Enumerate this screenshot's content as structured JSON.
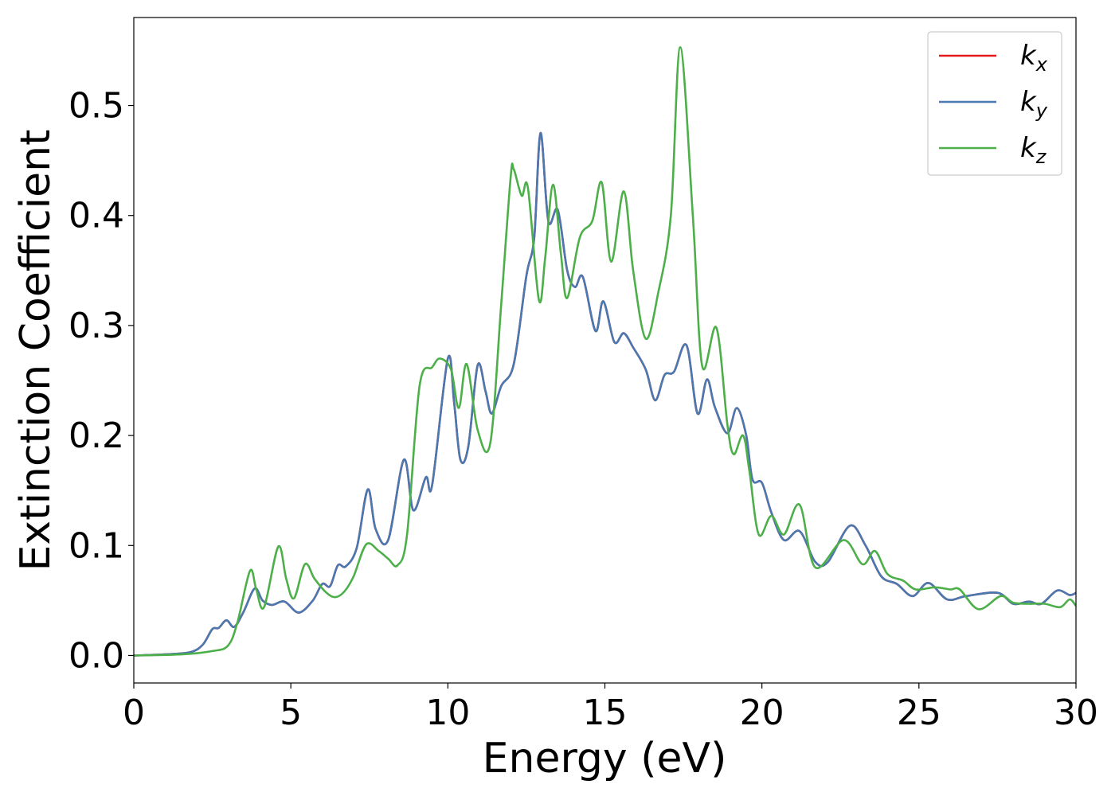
{
  "chart_data": {
    "type": "line",
    "title": "",
    "xlabel": "Energy (eV)",
    "ylabel": "Extinction Coefficient",
    "xlim": [
      0,
      30
    ],
    "ylim": [
      -0.025,
      0.58
    ],
    "xticks": [
      0,
      5,
      10,
      15,
      20,
      25,
      30
    ],
    "xtick_labels": [
      "0",
      "5",
      "10",
      "15",
      "20",
      "25",
      "30"
    ],
    "yticks": [
      0.0,
      0.1,
      0.2,
      0.3,
      0.4,
      0.5
    ],
    "ytick_labels": [
      "0.0",
      "0.1",
      "0.2",
      "0.3",
      "0.4",
      "0.5"
    ],
    "grid": false,
    "legend_position": "top-right",
    "series": [
      {
        "name": "k",
        "subscript": "x",
        "color": "#e41a1c",
        "points": [
          [
            0,
            0
          ],
          [
            1,
            0.001
          ],
          [
            1.8,
            0.003
          ],
          [
            2.2,
            0.01
          ],
          [
            2.5,
            0.024
          ],
          [
            2.7,
            0.025
          ],
          [
            2.95,
            0.032
          ],
          [
            3.2,
            0.026
          ],
          [
            3.5,
            0.04
          ],
          [
            3.85,
            0.061
          ],
          [
            4.1,
            0.05
          ],
          [
            4.4,
            0.046
          ],
          [
            4.8,
            0.049
          ],
          [
            5.25,
            0.039
          ],
          [
            5.7,
            0.05
          ],
          [
            6.0,
            0.065
          ],
          [
            6.25,
            0.063
          ],
          [
            6.5,
            0.082
          ],
          [
            6.75,
            0.081
          ],
          [
            7.1,
            0.098
          ],
          [
            7.45,
            0.151
          ],
          [
            7.7,
            0.115
          ],
          [
            8.1,
            0.105
          ],
          [
            8.6,
            0.178
          ],
          [
            8.9,
            0.132
          ],
          [
            9.3,
            0.162
          ],
          [
            9.5,
            0.155
          ],
          [
            10.0,
            0.27
          ],
          [
            10.2,
            0.23
          ],
          [
            10.4,
            0.178
          ],
          [
            10.65,
            0.19
          ],
          [
            10.95,
            0.264
          ],
          [
            11.2,
            0.24
          ],
          [
            11.4,
            0.22
          ],
          [
            11.7,
            0.245
          ],
          [
            12.1,
            0.265
          ],
          [
            12.5,
            0.345
          ],
          [
            12.75,
            0.38
          ],
          [
            12.95,
            0.475
          ],
          [
            13.2,
            0.395
          ],
          [
            13.5,
            0.405
          ],
          [
            13.8,
            0.35
          ],
          [
            14.05,
            0.335
          ],
          [
            14.3,
            0.344
          ],
          [
            14.7,
            0.295
          ],
          [
            14.95,
            0.322
          ],
          [
            15.3,
            0.285
          ],
          [
            15.6,
            0.293
          ],
          [
            15.9,
            0.28
          ],
          [
            16.3,
            0.26
          ],
          [
            16.6,
            0.232
          ],
          [
            16.9,
            0.255
          ],
          [
            17.2,
            0.258
          ],
          [
            17.6,
            0.282
          ],
          [
            17.95,
            0.22
          ],
          [
            18.25,
            0.251
          ],
          [
            18.5,
            0.226
          ],
          [
            18.9,
            0.202
          ],
          [
            19.2,
            0.225
          ],
          [
            19.5,
            0.2
          ],
          [
            19.7,
            0.16
          ],
          [
            20.0,
            0.157
          ],
          [
            20.3,
            0.13
          ],
          [
            20.7,
            0.105
          ],
          [
            21.2,
            0.113
          ],
          [
            21.7,
            0.085
          ],
          [
            22.1,
            0.085
          ],
          [
            22.8,
            0.118
          ],
          [
            23.3,
            0.1
          ],
          [
            23.8,
            0.072
          ],
          [
            24.3,
            0.065
          ],
          [
            24.8,
            0.054
          ],
          [
            25.3,
            0.066
          ],
          [
            25.9,
            0.051
          ],
          [
            26.5,
            0.054
          ],
          [
            27.5,
            0.057
          ],
          [
            28.0,
            0.047
          ],
          [
            28.5,
            0.049
          ],
          [
            28.9,
            0.047
          ],
          [
            29.4,
            0.059
          ],
          [
            29.8,
            0.055
          ],
          [
            30.0,
            0.057
          ]
        ]
      },
      {
        "name": "k",
        "subscript": "y",
        "color": "#4a78b0",
        "points": [
          [
            0,
            0
          ],
          [
            1,
            0.001
          ],
          [
            1.8,
            0.003
          ],
          [
            2.2,
            0.01
          ],
          [
            2.5,
            0.024
          ],
          [
            2.7,
            0.025
          ],
          [
            2.95,
            0.032
          ],
          [
            3.2,
            0.026
          ],
          [
            3.5,
            0.04
          ],
          [
            3.85,
            0.061
          ],
          [
            4.1,
            0.05
          ],
          [
            4.4,
            0.046
          ],
          [
            4.8,
            0.049
          ],
          [
            5.25,
            0.039
          ],
          [
            5.7,
            0.05
          ],
          [
            6.0,
            0.065
          ],
          [
            6.25,
            0.063
          ],
          [
            6.5,
            0.082
          ],
          [
            6.75,
            0.081
          ],
          [
            7.1,
            0.098
          ],
          [
            7.45,
            0.151
          ],
          [
            7.7,
            0.115
          ],
          [
            8.1,
            0.105
          ],
          [
            8.6,
            0.178
          ],
          [
            8.9,
            0.132
          ],
          [
            9.3,
            0.162
          ],
          [
            9.5,
            0.155
          ],
          [
            10.0,
            0.27
          ],
          [
            10.2,
            0.23
          ],
          [
            10.4,
            0.178
          ],
          [
            10.65,
            0.19
          ],
          [
            10.95,
            0.264
          ],
          [
            11.2,
            0.24
          ],
          [
            11.4,
            0.22
          ],
          [
            11.7,
            0.245
          ],
          [
            12.1,
            0.265
          ],
          [
            12.5,
            0.345
          ],
          [
            12.75,
            0.38
          ],
          [
            12.95,
            0.475
          ],
          [
            13.2,
            0.395
          ],
          [
            13.5,
            0.405
          ],
          [
            13.8,
            0.35
          ],
          [
            14.05,
            0.335
          ],
          [
            14.3,
            0.344
          ],
          [
            14.7,
            0.295
          ],
          [
            14.95,
            0.322
          ],
          [
            15.3,
            0.285
          ],
          [
            15.6,
            0.293
          ],
          [
            15.9,
            0.28
          ],
          [
            16.3,
            0.26
          ],
          [
            16.6,
            0.232
          ],
          [
            16.9,
            0.255
          ],
          [
            17.2,
            0.258
          ],
          [
            17.6,
            0.282
          ],
          [
            17.95,
            0.22
          ],
          [
            18.25,
            0.251
          ],
          [
            18.5,
            0.226
          ],
          [
            18.9,
            0.202
          ],
          [
            19.2,
            0.225
          ],
          [
            19.5,
            0.2
          ],
          [
            19.7,
            0.16
          ],
          [
            20.0,
            0.157
          ],
          [
            20.3,
            0.13
          ],
          [
            20.7,
            0.105
          ],
          [
            21.2,
            0.113
          ],
          [
            21.7,
            0.085
          ],
          [
            22.1,
            0.085
          ],
          [
            22.8,
            0.118
          ],
          [
            23.3,
            0.1
          ],
          [
            23.8,
            0.072
          ],
          [
            24.3,
            0.065
          ],
          [
            24.8,
            0.054
          ],
          [
            25.3,
            0.066
          ],
          [
            25.9,
            0.051
          ],
          [
            26.5,
            0.054
          ],
          [
            27.5,
            0.057
          ],
          [
            28.0,
            0.047
          ],
          [
            28.5,
            0.049
          ],
          [
            28.9,
            0.047
          ],
          [
            29.4,
            0.059
          ],
          [
            29.8,
            0.055
          ],
          [
            30.0,
            0.057
          ]
        ]
      },
      {
        "name": "k",
        "subscript": "z",
        "color": "#4daf4a",
        "points": [
          [
            0,
            0
          ],
          [
            1.5,
            0.001
          ],
          [
            2.5,
            0.004
          ],
          [
            3.0,
            0.009
          ],
          [
            3.3,
            0.03
          ],
          [
            3.7,
            0.077
          ],
          [
            3.9,
            0.06
          ],
          [
            4.15,
            0.044
          ],
          [
            4.6,
            0.099
          ],
          [
            4.85,
            0.07
          ],
          [
            5.1,
            0.052
          ],
          [
            5.45,
            0.083
          ],
          [
            5.75,
            0.07
          ],
          [
            6.1,
            0.058
          ],
          [
            6.4,
            0.053
          ],
          [
            6.7,
            0.058
          ],
          [
            7.0,
            0.072
          ],
          [
            7.4,
            0.101
          ],
          [
            7.8,
            0.095
          ],
          [
            8.1,
            0.088
          ],
          [
            8.4,
            0.082
          ],
          [
            8.7,
            0.11
          ],
          [
            9.1,
            0.245
          ],
          [
            9.5,
            0.262
          ],
          [
            9.75,
            0.27
          ],
          [
            10.1,
            0.26
          ],
          [
            10.35,
            0.225
          ],
          [
            10.6,
            0.265
          ],
          [
            10.95,
            0.205
          ],
          [
            11.35,
            0.193
          ],
          [
            11.7,
            0.32
          ],
          [
            12.0,
            0.435
          ],
          [
            12.1,
            0.442
          ],
          [
            12.35,
            0.418
          ],
          [
            12.55,
            0.425
          ],
          [
            12.9,
            0.323
          ],
          [
            13.1,
            0.362
          ],
          [
            13.35,
            0.428
          ],
          [
            13.6,
            0.365
          ],
          [
            13.8,
            0.325
          ],
          [
            14.2,
            0.38
          ],
          [
            14.6,
            0.395
          ],
          [
            14.9,
            0.43
          ],
          [
            15.2,
            0.358
          ],
          [
            15.6,
            0.422
          ],
          [
            15.9,
            0.35
          ],
          [
            16.3,
            0.288
          ],
          [
            16.7,
            0.33
          ],
          [
            17.1,
            0.4
          ],
          [
            17.4,
            0.553
          ],
          [
            17.8,
            0.4
          ],
          [
            18.1,
            0.263
          ],
          [
            18.55,
            0.298
          ],
          [
            18.9,
            0.21
          ],
          [
            19.1,
            0.183
          ],
          [
            19.4,
            0.2
          ],
          [
            19.6,
            0.168
          ],
          [
            19.9,
            0.11
          ],
          [
            20.3,
            0.127
          ],
          [
            20.7,
            0.11
          ],
          [
            21.2,
            0.137
          ],
          [
            21.7,
            0.08
          ],
          [
            22.6,
            0.105
          ],
          [
            23.2,
            0.083
          ],
          [
            23.6,
            0.095
          ],
          [
            24.0,
            0.074
          ],
          [
            24.5,
            0.068
          ],
          [
            24.9,
            0.06
          ],
          [
            25.5,
            0.062
          ],
          [
            26.0,
            0.06
          ],
          [
            26.3,
            0.06
          ],
          [
            26.9,
            0.042
          ],
          [
            27.6,
            0.054
          ],
          [
            28.0,
            0.048
          ],
          [
            28.5,
            0.047
          ],
          [
            29.0,
            0.047
          ],
          [
            29.5,
            0.044
          ],
          [
            29.8,
            0.051
          ],
          [
            30.0,
            0.045
          ]
        ]
      }
    ]
  }
}
